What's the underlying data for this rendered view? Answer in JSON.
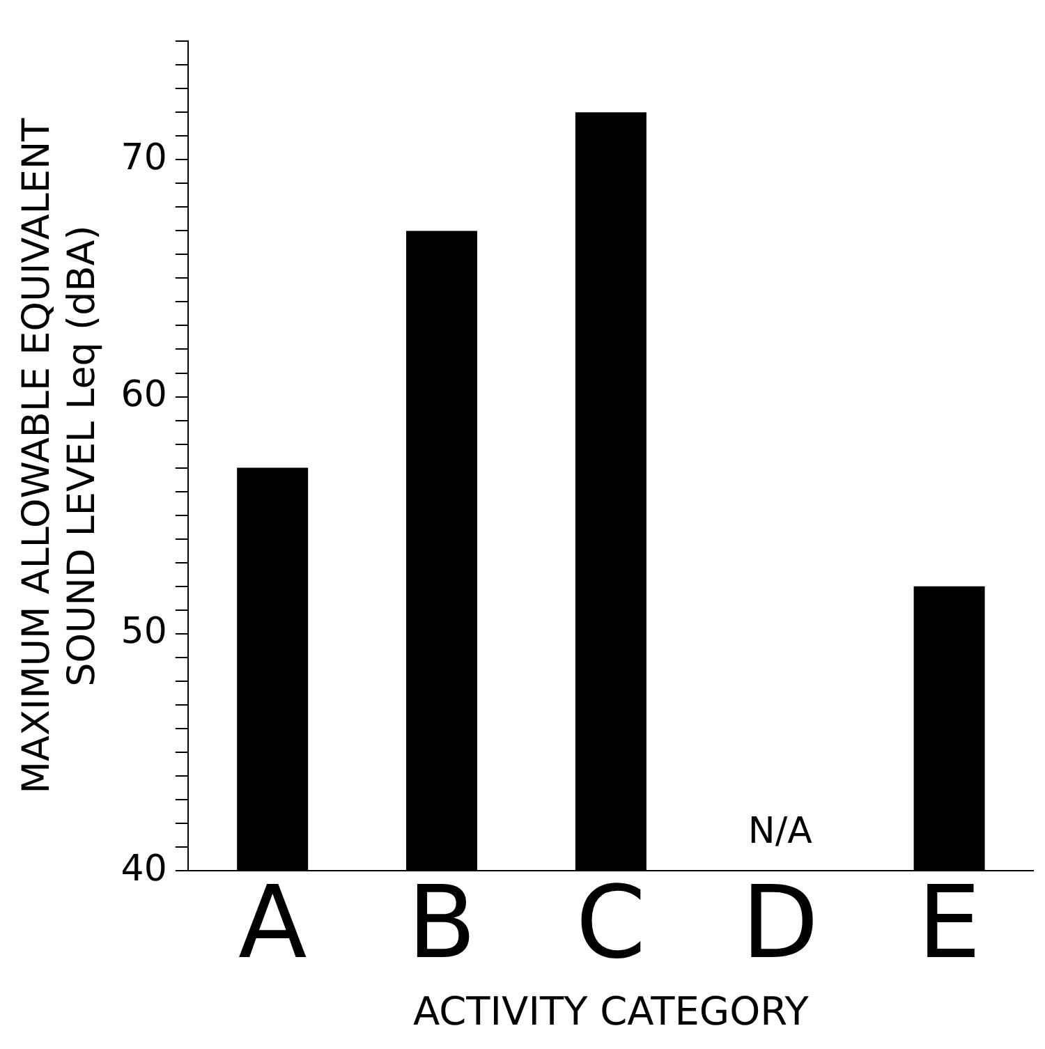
{
  "chart_data": {
    "type": "bar",
    "xlabel": "ACTIVITY CATEGORY",
    "ylabel": "MAXIMUM ALLOWABLE EQUIVALENT\nSOUND LEVEL Leq (dBA)",
    "categories": [
      "A",
      "B",
      "C",
      "D",
      "E"
    ],
    "values": [
      57,
      67,
      72,
      null,
      52
    ],
    "color": "#000000",
    "ylim": [
      40,
      75
    ],
    "yticks": [
      40,
      {
        "value": 41,
        "label": null
      },
      {
        "value": 42,
        "label": null
      },
      {
        "value": 43,
        "label": null
      },
      {
        "value": 44,
        "label": null
      },
      {
        "value": 45,
        "label": null
      },
      {
        "value": 46,
        "label": null
      },
      {
        "value": 47,
        "label": null
      },
      {
        "value": 48,
        "label": null
      },
      {
        "value": 49,
        "label": null
      },
      50,
      {
        "value": 51,
        "label": null
      },
      {
        "value": 52,
        "label": null
      },
      {
        "value": 53,
        "label": null
      },
      {
        "value": 54,
        "label": null
      },
      {
        "value": 55,
        "label": null
      },
      {
        "value": 56,
        "label": null
      },
      {
        "value": 57,
        "label": null
      },
      {
        "value": 58,
        "label": null
      },
      {
        "value": 59,
        "label": null
      },
      60,
      {
        "value": 61,
        "label": null
      },
      {
        "value": 62,
        "label": null
      },
      {
        "value": 63,
        "label": null
      },
      {
        "value": 64,
        "label": null
      },
      {
        "value": 65,
        "label": null
      },
      {
        "value": 66,
        "label": null
      },
      {
        "value": 67,
        "label": null
      },
      {
        "value": 68,
        "label": null
      },
      {
        "value": 69,
        "label": null
      },
      70,
      {
        "value": 71,
        "label": null
      },
      {
        "value": 72,
        "label": null
      },
      {
        "value": 73,
        "label": null
      },
      {
        "value": 74,
        "label": null
      },
      {
        "value": 75,
        "label": null
      }
    ],
    "annotations": [
      "N/A"
    ],
    "grid": false,
    "legend": false
  }
}
